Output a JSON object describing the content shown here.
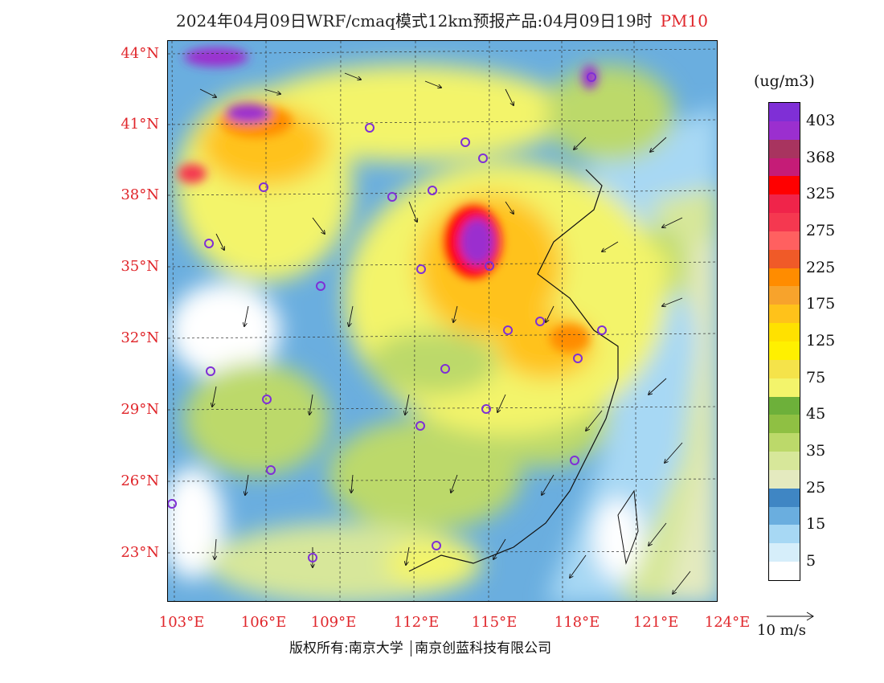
{
  "title": {
    "main": "2024年04月09日WRF/cmaq模式12km预报产品:04月09日19时",
    "pollutant": "PM10"
  },
  "colorbar": {
    "unit": "(ug/m3)",
    "levels": [
      {
        "label": "403",
        "color": "#7f2fd6"
      },
      {
        "label": "",
        "color": "#9b2fcf"
      },
      {
        "label": "368",
        "color": "#a8345f"
      },
      {
        "label": "",
        "color": "#c51c77"
      },
      {
        "label": "325",
        "color": "#ff0000"
      },
      {
        "label": "",
        "color": "#f0244a"
      },
      {
        "label": "275",
        "color": "#f53850"
      },
      {
        "label": "",
        "color": "#ff6060"
      },
      {
        "label": "225",
        "color": "#f05a28"
      },
      {
        "label": "",
        "color": "#ff8c00"
      },
      {
        "label": "175",
        "color": "#f7a32c"
      },
      {
        "label": "",
        "color": "#ffc21a"
      },
      {
        "label": "125",
        "color": "#ffe100"
      },
      {
        "label": "",
        "color": "#fff000"
      },
      {
        "label": "75",
        "color": "#f5e34a"
      },
      {
        "label": "",
        "color": "#f3f46b"
      },
      {
        "label": "45",
        "color": "#6db03a"
      },
      {
        "label": "",
        "color": "#8fc043"
      },
      {
        "label": "35",
        "color": "#bcd96a"
      },
      {
        "label": "",
        "color": "#d7e79a"
      },
      {
        "label": "25",
        "color": "#e4eabf"
      },
      {
        "label": "",
        "color": "#3f86c4"
      },
      {
        "label": "15",
        "color": "#6aaedf"
      },
      {
        "label": "",
        "color": "#a7d8f4"
      },
      {
        "label": "5",
        "color": "#d6eefa"
      },
      {
        "label": "",
        "color": "#ffffff"
      }
    ]
  },
  "axes": {
    "lat_labels": [
      "44°N",
      "41°N",
      "38°N",
      "35°N",
      "32°N",
      "29°N",
      "26°N",
      "23°N"
    ],
    "lon_labels": [
      "103°E",
      "106°E",
      "109°E",
      "112°E",
      "115°E",
      "118°E",
      "121°E",
      "124°E"
    ]
  },
  "wind_reference": "10 m/s",
  "footer": {
    "left": "版权所有:南京大学",
    "right": "南京创蓝科技有限公司"
  }
}
